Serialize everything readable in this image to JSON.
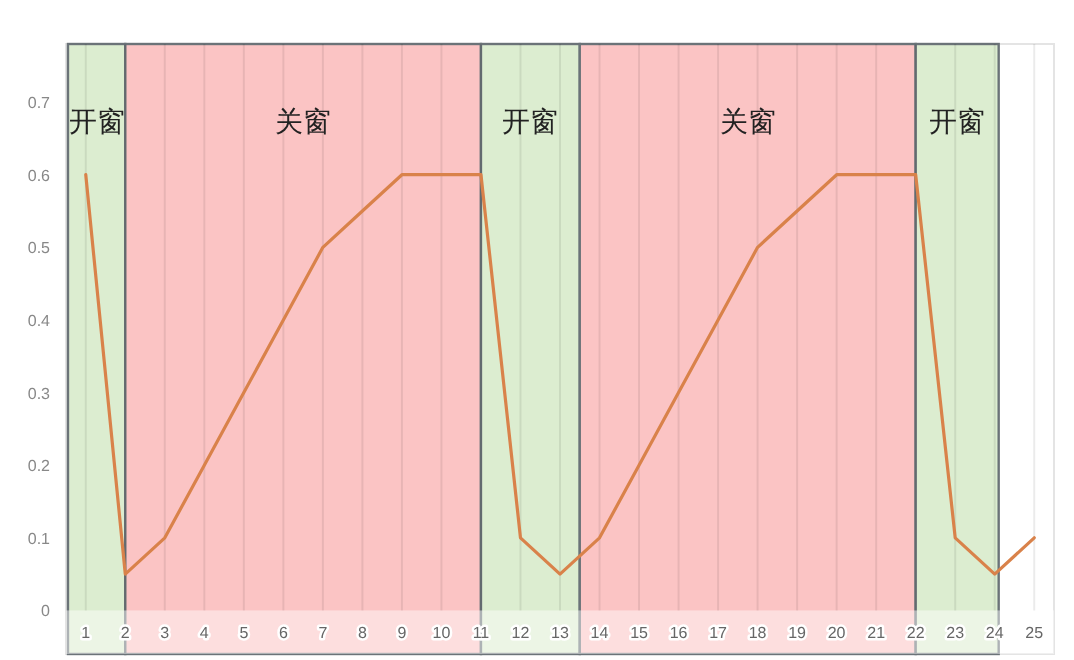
{
  "chart_data": {
    "type": "line",
    "x": [
      1,
      2,
      3,
      4,
      5,
      6,
      7,
      8,
      9,
      10,
      11,
      12,
      13,
      14,
      15,
      16,
      17,
      18,
      19,
      20,
      21,
      22,
      23,
      24,
      25
    ],
    "series": [
      {
        "color": "#d9824a",
        "values": [
          0.6,
          0.05,
          0.1,
          0.2,
          0.3,
          0.4,
          0.5,
          0.55,
          0.6,
          0.6,
          0.6,
          0.1,
          0.05,
          0.1,
          0.2,
          0.3,
          0.4,
          0.5,
          0.55,
          0.6,
          0.6,
          0.6,
          0.1,
          0.05,
          0.1
        ]
      }
    ],
    "xlim": [
      0.5,
      25.5
    ],
    "ylim": [
      -0.06,
      0.78
    ],
    "xticks": [
      1,
      2,
      3,
      4,
      5,
      6,
      7,
      8,
      9,
      10,
      11,
      12,
      13,
      14,
      15,
      16,
      17,
      18,
      19,
      20,
      21,
      22,
      23,
      24,
      25
    ],
    "yticks": [
      0,
      0.1,
      0.2,
      0.3,
      0.4,
      0.5,
      0.6,
      0.7
    ],
    "grid": "x",
    "marker": "none",
    "line_style": "solid",
    "bands": [
      {
        "axis": "x",
        "from": 0.55,
        "to": 2,
        "label": "开窗",
        "color": "#dcedd0"
      },
      {
        "axis": "x",
        "from": 2,
        "to": 11,
        "label": "关窗",
        "color": "#fbc4c4"
      },
      {
        "axis": "x",
        "from": 11,
        "to": 13.5,
        "label": "开窗",
        "color": "#dcedd0"
      },
      {
        "axis": "x",
        "from": 13.5,
        "to": 22,
        "label": "关窗",
        "color": "#fbc4c4"
      },
      {
        "axis": "x",
        "from": 22,
        "to": 24.1,
        "label": "开窗",
        "color": "#dcedd0"
      }
    ]
  }
}
